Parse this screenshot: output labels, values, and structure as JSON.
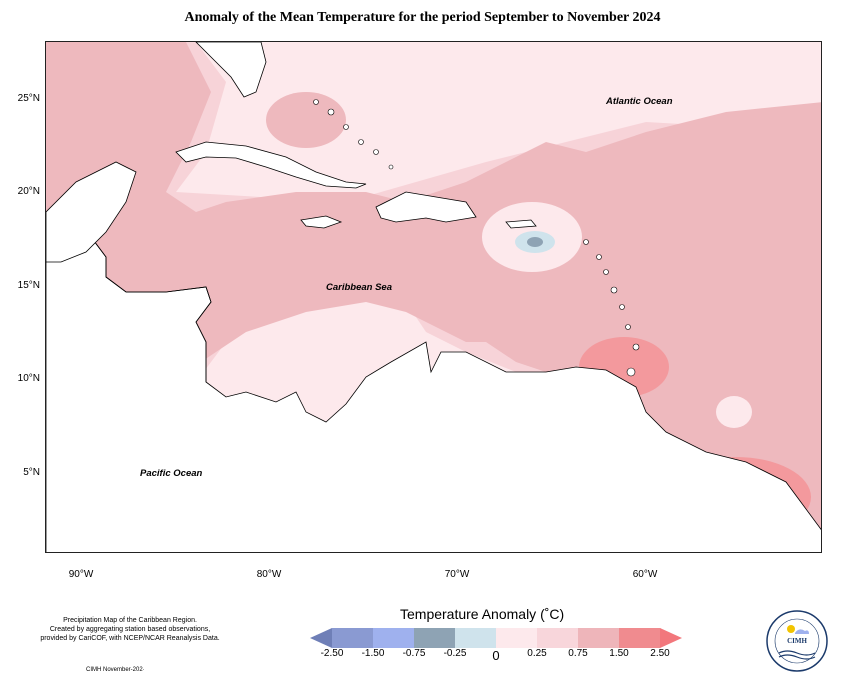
{
  "title": "Anomaly of the Mean Temperature for the period September to November 2024",
  "latitude_labels": [
    "25°N",
    "20°N",
    "15°N",
    "10°N",
    "5°N"
  ],
  "longitude_labels": [
    "90°W",
    "80°W",
    "70°W",
    "60°W"
  ],
  "places": {
    "atlantic": "Atlantic Ocean",
    "caribbean": "Caribbean Sea",
    "pacific": "Pacific Ocean"
  },
  "credit_lines": [
    "Precipitation Map of the Caribbean Region.",
    "Created by aggregating station based observations,",
    "provided by CariCOF, with NCEP/NCAR Reanalysis Data."
  ],
  "cimh_date": "CIMH November-202·",
  "legend": {
    "title": "Temperature Anomaly (˚C)",
    "ticks": [
      "-2.50",
      "-1.50",
      "-0.75",
      "-0.25",
      "0",
      "0.25",
      "0.75",
      "1.50",
      "2.50"
    ],
    "colors": [
      "#6f7fb7",
      "#8a9ad2",
      "#9fb1ee",
      "#8ea3b4",
      "#cfe3ec",
      "#fde9ec",
      "#f8d6db",
      "#eeb5ba",
      "#f08b8f",
      "#f2777c"
    ]
  },
  "logo": {
    "text": "CIMH"
  }
}
